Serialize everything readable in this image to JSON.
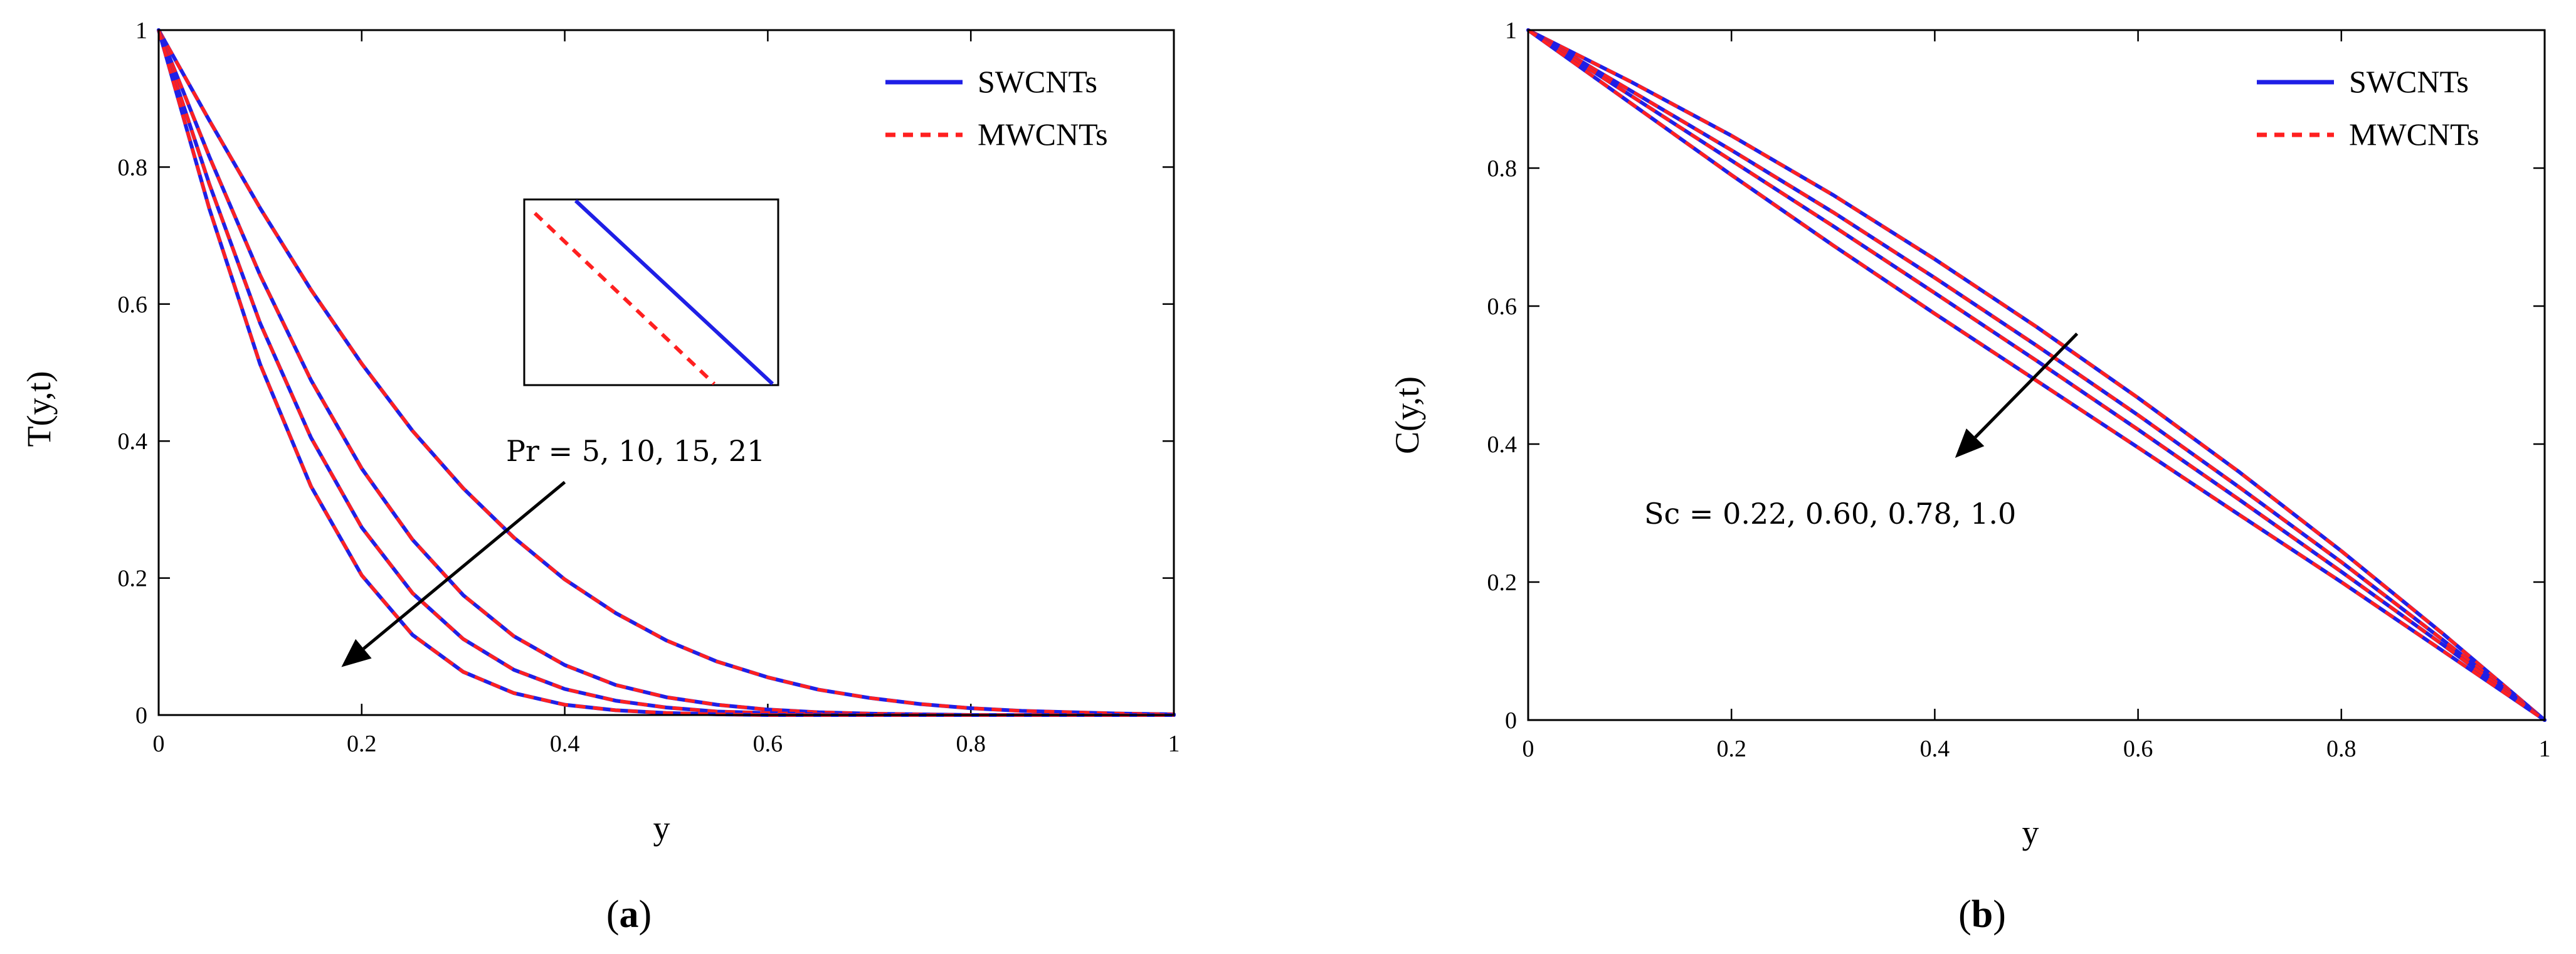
{
  "colors": {
    "swcnt": "#1f1fe6",
    "mwcnt": "#ff2020",
    "axis": "#000000"
  },
  "chart_data": [
    {
      "type": "line",
      "panel_label": "(a)",
      "panel_letter": "a",
      "xlabel": "y",
      "ylabel": "T(y,t)",
      "xlim": [
        0,
        1
      ],
      "ylim": [
        0,
        1
      ],
      "xticks": [
        0,
        0.2,
        0.4,
        0.6,
        0.8,
        1
      ],
      "xtick_labels": [
        "0",
        "0.2",
        "0.4",
        "0.6",
        "0.8",
        "1"
      ],
      "yticks": [
        0,
        0.2,
        0.4,
        0.6,
        0.8,
        1
      ],
      "ytick_labels": [
        "0",
        "0.2",
        "0.4",
        "0.6",
        "0.8",
        "1"
      ],
      "legend": {
        "placement": "top-right",
        "entries": [
          "SWCNTs",
          "MWCNTs"
        ]
      },
      "annotation": "Pr = 5, 10, 15, 21",
      "arrow": {
        "from": [
          0.4,
          0.34
        ],
        "to": [
          0.18,
          0.07
        ]
      },
      "x": [
        0,
        0.05,
        0.1,
        0.15,
        0.2,
        0.25,
        0.3,
        0.35,
        0.4,
        0.45,
        0.5,
        0.55,
        0.6,
        0.65,
        0.7,
        0.75,
        0.8,
        0.85,
        0.9,
        0.95,
        1
      ],
      "series": [
        {
          "name": "SWCNTs, Pr = 5",
          "values": [
            1,
            0.868,
            0.74,
            0.621,
            0.513,
            0.415,
            0.331,
            0.259,
            0.198,
            0.149,
            0.109,
            0.078,
            0.055,
            0.037,
            0.025,
            0.016,
            0.01,
            0.006,
            0.004,
            0.002,
            0.001
          ]
        },
        {
          "name": "SWCNTs, Pr = 10",
          "values": [
            1,
            0.815,
            0.642,
            0.489,
            0.36,
            0.256,
            0.175,
            0.115,
            0.073,
            0.044,
            0.026,
            0.015,
            0.008,
            0.004,
            0.002,
            0.001,
            0,
            0,
            0,
            0,
            0
          ]
        },
        {
          "name": "SWCNTs, Pr = 15",
          "values": [
            1,
            0.775,
            0.572,
            0.405,
            0.274,
            0.178,
            0.111,
            0.066,
            0.038,
            0.021,
            0.011,
            0.005,
            0.003,
            0.001,
            0,
            0,
            0,
            0,
            0,
            0,
            0
          ]
        },
        {
          "name": "SWCNTs, Pr = 21",
          "values": [
            1,
            0.739,
            0.512,
            0.334,
            0.204,
            0.117,
            0.063,
            0.032,
            0.015,
            0.007,
            0.003,
            0.001,
            0,
            0,
            0,
            0,
            0,
            0,
            0,
            0,
            0
          ]
        }
      ]
    },
    {
      "type": "line",
      "panel_label": "(b)",
      "panel_letter": "b",
      "xlabel": "y",
      "ylabel": "C(y,t)",
      "xlim": [
        0,
        1
      ],
      "ylim": [
        0,
        1
      ],
      "xticks": [
        0,
        0.2,
        0.4,
        0.6,
        0.8,
        1
      ],
      "xtick_labels": [
        "0",
        "0.2",
        "0.4",
        "0.6",
        "0.8",
        "1"
      ],
      "yticks": [
        0,
        0.2,
        0.4,
        0.6,
        0.8,
        1
      ],
      "ytick_labels": [
        "0",
        "0.2",
        "0.4",
        "0.6",
        "0.8",
        "1"
      ],
      "legend": {
        "placement": "top-right",
        "entries": [
          "SWCNTs",
          "MWCNTs"
        ]
      },
      "annotation": "Sc = 0.22, 0.60, 0.78, 1.0",
      "arrow": {
        "from": [
          0.54,
          0.56
        ],
        "to": [
          0.42,
          0.38
        ]
      },
      "x": [
        0,
        0.1,
        0.2,
        0.3,
        0.4,
        0.5,
        0.6,
        0.7,
        0.8,
        0.9,
        1
      ],
      "series": [
        {
          "name": "SWCNTs, Sc = 0.22",
          "values": [
            1,
            0.926,
            0.847,
            0.761,
            0.668,
            0.57,
            0.467,
            0.359,
            0.245,
            0.125,
            0
          ]
        },
        {
          "name": "SWCNTs, Sc = 0.60",
          "values": [
            1,
            0.913,
            0.826,
            0.736,
            0.641,
            0.543,
            0.442,
            0.337,
            0.229,
            0.116,
            0
          ]
        },
        {
          "name": "SWCNTs, Sc = 0.78",
          "values": [
            1,
            0.906,
            0.811,
            0.716,
            0.619,
            0.521,
            0.421,
            0.319,
            0.215,
            0.109,
            0
          ]
        },
        {
          "name": "SWCNTs, Sc = 1.0",
          "values": [
            1,
            0.895,
            0.79,
            0.688,
            0.589,
            0.492,
            0.395,
            0.297,
            0.2,
            0.1,
            0
          ]
        }
      ]
    }
  ]
}
